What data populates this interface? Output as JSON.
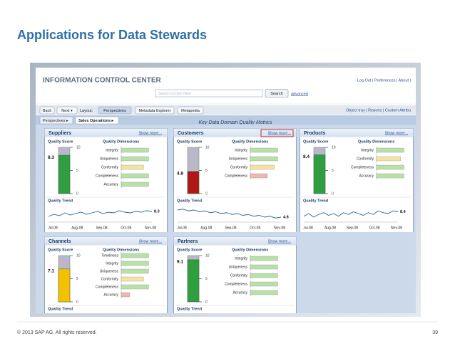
{
  "slide": {
    "title": "Applications for Data Stewards",
    "footer": "© 2013 SAP AG. All rights reserved.",
    "page_number": 39
  },
  "app": {
    "title": "INFORMATION CONTROL CENTER",
    "header_links": "Log Out | Preferences | About |",
    "search_placeholder": "Search on Item Here",
    "search_button": "Search",
    "advanced": "advanced",
    "toolbar": [
      "Back",
      "Next ▾",
      "Layout:",
      "Perspectives",
      "Metadata Explorer",
      "Metapedia"
    ],
    "toolbar_right": "Object tray | Reports | Custom Attribu",
    "breadcrumb": [
      "Perspectives ▸",
      "Sales Operations ▸"
    ],
    "page_title": "Key Data Domain Quality Metrics",
    "labels": {
      "show_more": "Show more...",
      "quality_score": "Quality Score",
      "quality_dimensions": "Quality Dimensions",
      "quality_trend": "Quality Trend"
    },
    "gauge_ticks": [
      0,
      5,
      10
    ],
    "dimension_xlim": [
      0,
      100
    ],
    "panels": [
      {
        "name": "Suppliers",
        "score": 8.3,
        "gauge_color": "#2e9e3e",
        "dimensions": [
          {
            "name": "Integrity",
            "value": 80,
            "color": "#b9e0ab"
          },
          {
            "name": "Uniqueness",
            "value": 80,
            "color": "#b9e0ab"
          },
          {
            "name": "Conformity",
            "value": 65,
            "color": "#f7e2a6"
          },
          {
            "name": "Completeness",
            "value": 80,
            "color": "#b9e0ab"
          },
          {
            "name": "Accuracy",
            "value": 80,
            "color": "#b9e0ab"
          }
        ],
        "trend": [
          7.6,
          7.9,
          7.7,
          8.1,
          7.8,
          8.0,
          8.2,
          7.9,
          8.1,
          8.3,
          8.0,
          8.2,
          8.1,
          8.4,
          8.2,
          8.1,
          8.3,
          8.2,
          8.4,
          8.3
        ],
        "trend_ylim": [
          7,
          9
        ],
        "months": [
          "Jul-08",
          "Aug-08",
          "Sep-08",
          "Oct-08",
          "Nov-08"
        ]
      },
      {
        "name": "Customers",
        "score": 4.8,
        "gauge_color": "#b01818",
        "highlighted": true,
        "dimensions": [
          {
            "name": "Integrity",
            "value": 80,
            "color": "#b9e0ab"
          },
          {
            "name": "Uniqueness",
            "value": 80,
            "color": "#b9e0ab"
          },
          {
            "name": "Conformity",
            "value": 70,
            "color": "#f7e2a6"
          },
          {
            "name": "Completeness",
            "value": 50,
            "color": "#f2b4b4"
          }
        ],
        "trend": [
          5.6,
          5.7,
          5.5,
          5.6,
          5.4,
          5.5,
          5.3,
          5.4,
          5.2,
          5.3,
          5.1,
          5.2,
          5.0,
          5.1,
          4.9,
          5.0,
          4.8,
          4.9,
          4.7,
          4.8
        ],
        "trend_ylim": [
          4.4,
          6
        ],
        "months": [
          "Jul-08",
          "Aug-08",
          "Sep-08",
          "Oct-08",
          "Nov-08"
        ]
      },
      {
        "name": "Products",
        "score": 8.4,
        "gauge_color": "#2e9e3e",
        "dimensions": [
          {
            "name": "Integrity",
            "value": 80,
            "color": "#b9e0ab"
          },
          {
            "name": "Conformity",
            "value": 70,
            "color": "#f7e2a6"
          },
          {
            "name": "Completeness",
            "value": 80,
            "color": "#b9e0ab"
          },
          {
            "name": "Accuracy",
            "value": 80,
            "color": "#b9e0ab"
          }
        ],
        "trend": [
          7.9,
          8.2,
          7.8,
          8.1,
          8.3,
          8.0,
          8.2,
          7.9,
          8.3,
          8.1,
          8.4,
          8.2,
          8.0,
          8.3,
          8.1,
          8.5,
          8.3,
          8.2,
          8.5,
          8.4
        ],
        "trend_ylim": [
          7.4,
          9
        ],
        "months": [
          "Jul-08",
          "Aug-08",
          "Sep-08",
          "Oct-08",
          "Nov-08"
        ]
      },
      {
        "name": "Channels",
        "score": 7.1,
        "gauge_color": "#f2c200",
        "dimensions": [
          {
            "name": "Timeliness",
            "value": 80,
            "color": "#b9e0ab"
          },
          {
            "name": "Integrity",
            "value": 80,
            "color": "#b9e0ab"
          },
          {
            "name": "Uniqueness",
            "value": 80,
            "color": "#b9e0ab"
          },
          {
            "name": "Conformity",
            "value": 65,
            "color": "#f7e2a6"
          },
          {
            "name": "Completeness",
            "value": 80,
            "color": "#b9e0ab"
          },
          {
            "name": "Accuracy",
            "value": 25,
            "color": "#f2b4b4"
          }
        ]
      },
      {
        "name": "Partners",
        "score": 9.1,
        "gauge_color": "#2e9e3e",
        "dimensions": [
          {
            "name": "Integrity",
            "value": 80,
            "color": "#b9e0ab"
          },
          {
            "name": "Uniqueness",
            "value": 80,
            "color": "#b9e0ab"
          },
          {
            "name": "Conformity",
            "value": 80,
            "color": "#b9e0ab"
          },
          {
            "name": "Completeness",
            "value": 80,
            "color": "#b9e0ab"
          },
          {
            "name": "Accuracy",
            "value": 80,
            "color": "#b9e0ab"
          }
        ]
      }
    ]
  }
}
